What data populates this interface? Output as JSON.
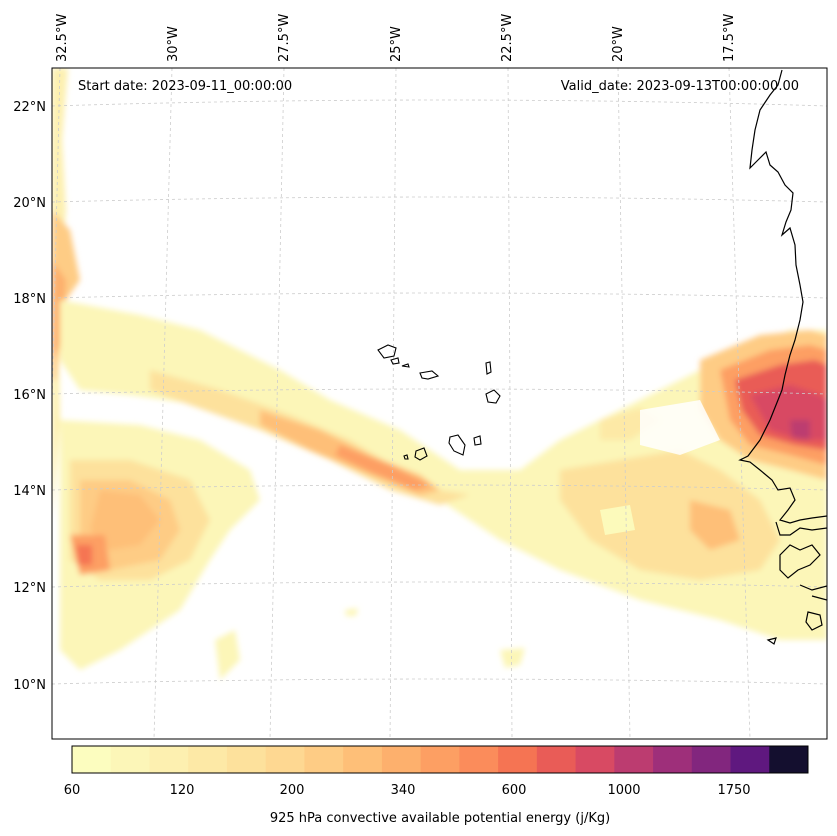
{
  "header": {
    "start_date": "Start date: 2023-09-11_00:00:00",
    "valid_date": "Valid_date: 2023-09-13T00:00:00.00"
  },
  "longitude_labels": [
    "32.5°W",
    "30°W",
    "27.5°W",
    "25°W",
    "22.5°W",
    "20°W",
    "17.5°W"
  ],
  "latitude_labels": [
    "22°N",
    "20°N",
    "18°N",
    "16°N",
    "14°N",
    "12°N",
    "10°N"
  ],
  "colorbar": {
    "title": "925 hPa convective available potential energy (j/Kg)",
    "tick_labels": [
      "60",
      "120",
      "200",
      "340",
      "600",
      "1000",
      "1750"
    ],
    "colors": [
      "#fcfdbf",
      "#fcf6b8",
      "#fdf0b0",
      "#fde9a6",
      "#fde19c",
      "#fed892",
      "#fecc85",
      "#febf78",
      "#fdb06d",
      "#fd9f63",
      "#fb8c5b",
      "#f57453",
      "#e95c57",
      "#d84a63",
      "#bc3c70",
      "#9e2f7a",
      "#82267e",
      "#5f187f",
      "#140f2f"
    ]
  },
  "colors": {
    "land_outline": "#000000",
    "gridline": "#cccccc",
    "background": "#ffffff"
  }
}
